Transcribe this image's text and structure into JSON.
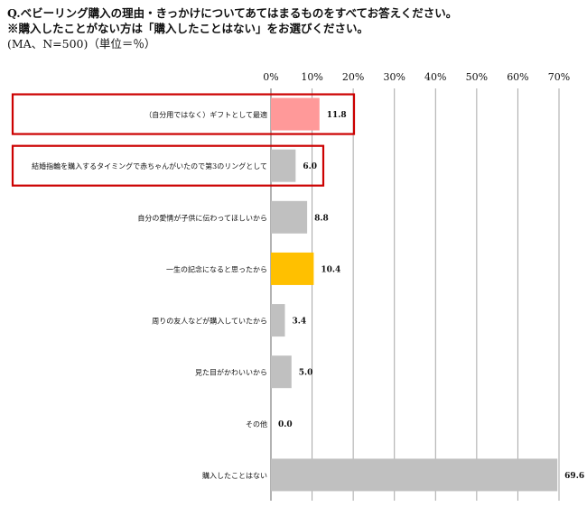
{
  "header": {
    "question": "Q.ベビーリング購入の理由・きっかけについてあてはまるものをすべてお答えください。",
    "note": "※購入したことがない方は「購入したことはない」をお選びください。",
    "meta": "(MA、N=500)（単位＝％）"
  },
  "chart_data": {
    "type": "bar",
    "orientation": "horizontal",
    "title": "",
    "xlabel": "",
    "ylabel": "",
    "xlim": [
      0,
      70
    ],
    "grid": true,
    "tick_labels": [
      "0%",
      "10%",
      "20%",
      "30%",
      "40%",
      "50%",
      "60%",
      "70%"
    ],
    "categories": [
      "（自分用ではなく）ギフトとして最適",
      "結婚指輪を購入するタイミングで赤ちゃんがいたので第3のリングとして",
      "自分の愛情が子供に伝わってほしいから",
      "一生の記念になると思ったから",
      "周りの友人などが購入していたから",
      "見た目がかわいいから",
      "その他",
      "購入したことはない"
    ],
    "values": [
      11.8,
      6.0,
      8.8,
      10.4,
      3.4,
      5.0,
      0.0,
      69.6
    ],
    "value_labels": [
      "11.8",
      "6.0",
      "8.8",
      "10.4",
      "3.4",
      "5.0",
      "0.0",
      "69.6"
    ],
    "bar_colors": [
      "#ff9999",
      "#c0c0c0",
      "#c0c0c0",
      "#ffc000",
      "#c0c0c0",
      "#c0c0c0",
      "#c0c0c0",
      "#c0c0c0"
    ],
    "highlight_boxes": [
      0,
      1
    ],
    "highlight_color": "#cc0000"
  }
}
